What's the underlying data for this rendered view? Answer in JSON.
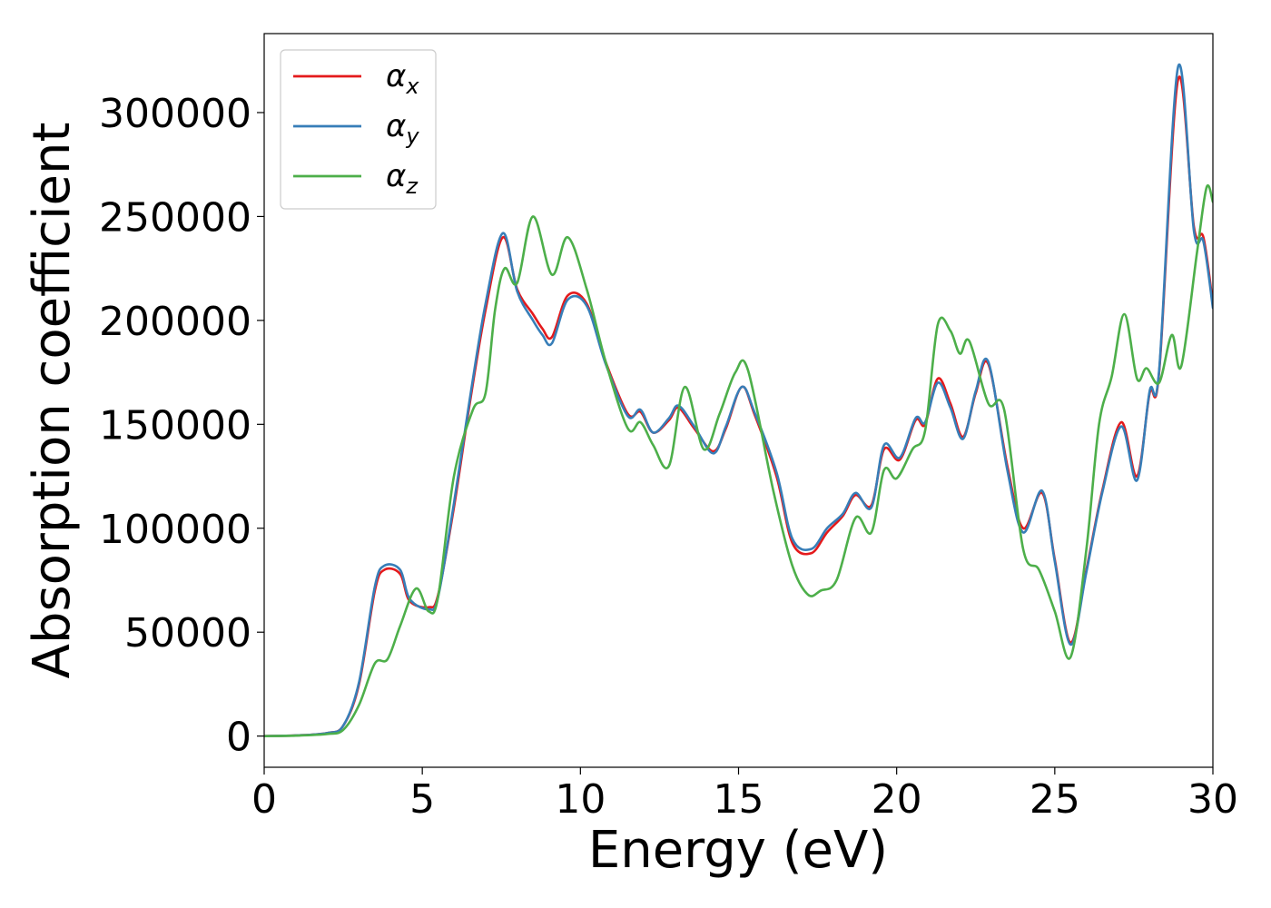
{
  "chart_data": {
    "type": "line",
    "xlabel": "Energy (eV)",
    "ylabel": "Absorption coefficient",
    "xlim": [
      0,
      30
    ],
    "ylim": [
      -15000,
      338000
    ],
    "xticks": [
      0,
      5,
      10,
      15,
      20,
      25,
      30
    ],
    "yticks": [
      0,
      50000,
      100000,
      150000,
      200000,
      250000,
      300000
    ],
    "grid": false,
    "legend_position": "top-left",
    "series": [
      {
        "name": "α_x",
        "label_main": "α",
        "label_sub": "x",
        "color": "#e41a1c",
        "points": [
          [
            0,
            0
          ],
          [
            1,
            300
          ],
          [
            2,
            1500
          ],
          [
            2.5,
            5000
          ],
          [
            3,
            25000
          ],
          [
            3.5,
            70000
          ],
          [
            3.8,
            80000
          ],
          [
            4.3,
            78000
          ],
          [
            4.6,
            65000
          ],
          [
            5.2,
            62000
          ],
          [
            5.5,
            68000
          ],
          [
            6,
            110000
          ],
          [
            6.5,
            160000
          ],
          [
            7,
            205000
          ],
          [
            7.55,
            240000
          ],
          [
            8,
            215000
          ],
          [
            8.5,
            203000
          ],
          [
            8.8,
            196000
          ],
          [
            9.1,
            192000
          ],
          [
            9.6,
            212000
          ],
          [
            10.2,
            208000
          ],
          [
            10.8,
            180000
          ],
          [
            11.5,
            155000
          ],
          [
            11.9,
            156000
          ],
          [
            12.3,
            146000
          ],
          [
            12.8,
            152000
          ],
          [
            13.1,
            158000
          ],
          [
            13.6,
            148000
          ],
          [
            14.2,
            137000
          ],
          [
            14.6,
            148000
          ],
          [
            15.1,
            168000
          ],
          [
            15.5,
            155000
          ],
          [
            16.2,
            125000
          ],
          [
            16.7,
            93000
          ],
          [
            17.3,
            88000
          ],
          [
            17.8,
            98000
          ],
          [
            18.3,
            106000
          ],
          [
            18.7,
            116000
          ],
          [
            19.2,
            111000
          ],
          [
            19.6,
            138000
          ],
          [
            20.1,
            133000
          ],
          [
            20.6,
            152000
          ],
          [
            20.9,
            150000
          ],
          [
            21.3,
            172000
          ],
          [
            21.7,
            160000
          ],
          [
            22.1,
            144000
          ],
          [
            22.5,
            165000
          ],
          [
            22.9,
            179000
          ],
          [
            23.5,
            130000
          ],
          [
            24,
            100000
          ],
          [
            24.6,
            117000
          ],
          [
            25,
            85000
          ],
          [
            25.5,
            45000
          ],
          [
            26,
            80000
          ],
          [
            26.5,
            118000
          ],
          [
            27.1,
            151000
          ],
          [
            27.6,
            125000
          ],
          [
            28,
            165000
          ],
          [
            28.3,
            175000
          ],
          [
            28.9,
            316000
          ],
          [
            29.4,
            245000
          ],
          [
            29.7,
            240000
          ],
          [
            30,
            208000
          ]
        ]
      },
      {
        "name": "α_y",
        "label_main": "α",
        "label_sub": "y",
        "color": "#377eb8",
        "points": [
          [
            0,
            0
          ],
          [
            1,
            300
          ],
          [
            2,
            1500
          ],
          [
            2.5,
            5000
          ],
          [
            3,
            26000
          ],
          [
            3.5,
            72000
          ],
          [
            3.8,
            82000
          ],
          [
            4.3,
            80000
          ],
          [
            4.6,
            66000
          ],
          [
            5.2,
            61000
          ],
          [
            5.5,
            67000
          ],
          [
            6,
            112000
          ],
          [
            6.5,
            162000
          ],
          [
            7,
            208000
          ],
          [
            7.55,
            242000
          ],
          [
            8,
            214000
          ],
          [
            8.5,
            200000
          ],
          [
            8.8,
            193000
          ],
          [
            9.1,
            189000
          ],
          [
            9.6,
            210000
          ],
          [
            10.2,
            207000
          ],
          [
            10.8,
            179000
          ],
          [
            11.5,
            154000
          ],
          [
            11.9,
            157000
          ],
          [
            12.3,
            146000
          ],
          [
            12.8,
            153000
          ],
          [
            13.1,
            159000
          ],
          [
            13.6,
            149000
          ],
          [
            14.2,
            136000
          ],
          [
            14.6,
            149000
          ],
          [
            15.1,
            168000
          ],
          [
            15.5,
            156000
          ],
          [
            16.2,
            127000
          ],
          [
            16.7,
            95000
          ],
          [
            17.3,
            90000
          ],
          [
            17.8,
            100000
          ],
          [
            18.3,
            107000
          ],
          [
            18.7,
            117000
          ],
          [
            19.2,
            110000
          ],
          [
            19.6,
            140000
          ],
          [
            20.1,
            134000
          ],
          [
            20.6,
            153000
          ],
          [
            20.9,
            151000
          ],
          [
            21.3,
            170000
          ],
          [
            21.7,
            158000
          ],
          [
            22.1,
            143000
          ],
          [
            22.5,
            166000
          ],
          [
            22.9,
            180000
          ],
          [
            23.5,
            128000
          ],
          [
            24,
            98000
          ],
          [
            24.6,
            118000
          ],
          [
            25,
            84000
          ],
          [
            25.5,
            44000
          ],
          [
            26,
            79000
          ],
          [
            26.5,
            117000
          ],
          [
            27.1,
            149000
          ],
          [
            27.6,
            123000
          ],
          [
            28,
            166000
          ],
          [
            28.3,
            176000
          ],
          [
            28.9,
            322000
          ],
          [
            29.4,
            243000
          ],
          [
            29.7,
            238000
          ],
          [
            30,
            206000
          ]
        ]
      },
      {
        "name": "α_z",
        "label_main": "α",
        "label_sub": "z",
        "color": "#4daf4a",
        "points": [
          [
            0,
            0
          ],
          [
            1,
            200
          ],
          [
            2,
            1000
          ],
          [
            2.5,
            3000
          ],
          [
            3,
            15000
          ],
          [
            3.5,
            35000
          ],
          [
            3.9,
            37000
          ],
          [
            4.3,
            53000
          ],
          [
            4.8,
            71000
          ],
          [
            5.2,
            60000
          ],
          [
            5.5,
            67000
          ],
          [
            6,
            125000
          ],
          [
            6.6,
            157000
          ],
          [
            7,
            165000
          ],
          [
            7.3,
            205000
          ],
          [
            7.6,
            225000
          ],
          [
            8,
            218000
          ],
          [
            8.5,
            250000
          ],
          [
            9.1,
            222000
          ],
          [
            9.6,
            240000
          ],
          [
            10.2,
            215000
          ],
          [
            10.8,
            180000
          ],
          [
            11.5,
            148000
          ],
          [
            11.9,
            151000
          ],
          [
            12.3,
            140000
          ],
          [
            12.8,
            130000
          ],
          [
            13.3,
            168000
          ],
          [
            13.9,
            138000
          ],
          [
            14.4,
            155000
          ],
          [
            14.9,
            175000
          ],
          [
            15.3,
            176000
          ],
          [
            16.1,
            118000
          ],
          [
            16.7,
            82000
          ],
          [
            17.2,
            68000
          ],
          [
            17.6,
            70000
          ],
          [
            18.1,
            75000
          ],
          [
            18.7,
            105000
          ],
          [
            19.2,
            98000
          ],
          [
            19.6,
            128000
          ],
          [
            20,
            124000
          ],
          [
            20.5,
            138000
          ],
          [
            20.9,
            147000
          ],
          [
            21.3,
            198000
          ],
          [
            21.7,
            195000
          ],
          [
            22,
            184000
          ],
          [
            22.3,
            190000
          ],
          [
            22.9,
            160000
          ],
          [
            23.4,
            157000
          ],
          [
            24,
            90000
          ],
          [
            24.5,
            80000
          ],
          [
            25,
            60000
          ],
          [
            25.5,
            38000
          ],
          [
            26,
            90000
          ],
          [
            26.4,
            150000
          ],
          [
            26.8,
            173000
          ],
          [
            27.2,
            203000
          ],
          [
            27.6,
            172000
          ],
          [
            27.9,
            177000
          ],
          [
            28.3,
            170000
          ],
          [
            28.7,
            193000
          ],
          [
            29,
            178000
          ],
          [
            29.5,
            233000
          ],
          [
            29.8,
            264000
          ],
          [
            30,
            257000
          ]
        ]
      }
    ]
  }
}
